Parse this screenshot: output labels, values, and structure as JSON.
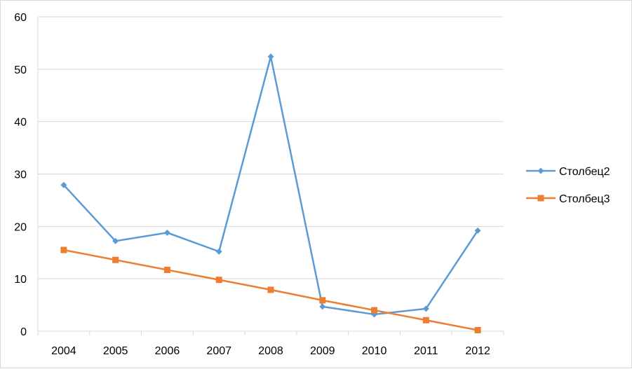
{
  "chart_data": {
    "type": "line",
    "categories": [
      "2004",
      "2005",
      "2006",
      "2007",
      "2008",
      "2009",
      "2010",
      "2011",
      "2012"
    ],
    "ylim": [
      0,
      60
    ],
    "yticks": [
      "0",
      "10",
      "20",
      "30",
      "40",
      "50",
      "60"
    ],
    "grid": true,
    "legend_position": "right",
    "series": [
      {
        "name": "Столбец2",
        "color": "#5B9BD5",
        "marker": "diamond",
        "values": [
          27.9,
          17.2,
          18.8,
          15.2,
          52.4,
          4.7,
          3.2,
          4.3,
          19.2
        ]
      },
      {
        "name": "Столбец3",
        "color": "#ED7D31",
        "marker": "square",
        "values": [
          15.5,
          13.6,
          11.7,
          9.8,
          7.9,
          5.9,
          4.0,
          2.1,
          0.2
        ]
      }
    ]
  }
}
